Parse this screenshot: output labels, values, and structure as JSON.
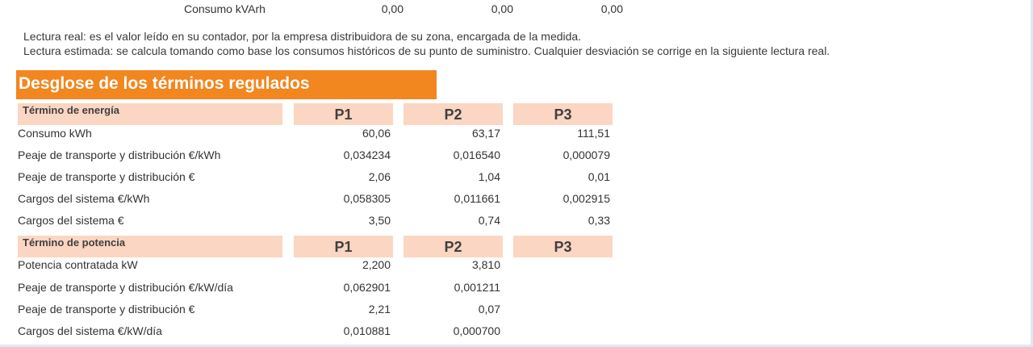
{
  "top_row": {
    "label": "Consumo kVArh",
    "values": [
      "0,00",
      "0,00",
      "0,00"
    ]
  },
  "notes": {
    "real": "Lectura real: es el valor leído en su contador, por la empresa distribuidora de su zona, encargada de la medida.",
    "estimated": "Lectura estimada: se calcula tomando como base los consumos históricos de su punto de suministro. Cualquier desviación se corrige en la siguiente lectura real."
  },
  "section_title": "Desglose de los términos regulados",
  "energy": {
    "header": "Término de energía",
    "periods": [
      "P1",
      "P2",
      "P3"
    ],
    "rows": [
      {
        "label": "Consumo kWh",
        "values": [
          "60,06",
          "63,17",
          "111,51"
        ]
      },
      {
        "label": "Peaje de transporte y distribución €/kWh",
        "values": [
          "0,034234",
          "0,016540",
          "0,000079"
        ]
      },
      {
        "label": "Peaje de transporte y distribución €",
        "values": [
          "2,06",
          "1,04",
          "0,01"
        ]
      },
      {
        "label": "Cargos del sistema €/kWh",
        "values": [
          "0,058305",
          "0,011661",
          "0,002915"
        ]
      },
      {
        "label": "Cargos del sistema €",
        "values": [
          "3,50",
          "0,74",
          "0,33"
        ]
      }
    ]
  },
  "power": {
    "header": "Término de potencia",
    "periods": [
      "P1",
      "P2",
      "P3"
    ],
    "rows": [
      {
        "label": "Potencia contratada kW",
        "values": [
          "2,200",
          "3,810",
          ""
        ]
      },
      {
        "label": "Peaje de transporte y distribución €/kW/día",
        "values": [
          "0,062901",
          "0,001211",
          ""
        ]
      },
      {
        "label": "Peaje de transporte y distribución €",
        "values": [
          "2,21",
          "0,07",
          ""
        ]
      },
      {
        "label": "Cargos del sistema €/kW/día",
        "values": [
          "0,010881",
          "0,000700",
          ""
        ]
      }
    ]
  },
  "colors": {
    "accent": "#f2861f",
    "header_fill": "#fbd6c3",
    "frame": "#dbe9f3"
  }
}
